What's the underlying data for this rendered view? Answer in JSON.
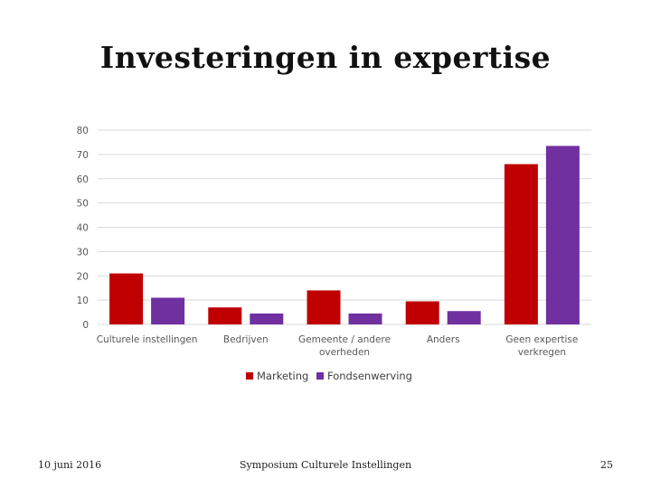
{
  "slide": {
    "title": "Investeringen in expertise",
    "footer_date": "10 juni 2016",
    "footer_title": "Symposium Culturele Instellingen",
    "page_number": "25"
  },
  "chart_data": {
    "type": "bar",
    "categories": [
      [
        "Culturele instellingen"
      ],
      [
        "Bedrijven"
      ],
      [
        "Gemeente / andere",
        "overheden"
      ],
      [
        "Anders"
      ],
      [
        "Geen expertise",
        "verkregen"
      ]
    ],
    "series": [
      {
        "name": "Marketing",
        "color": "#c00000",
        "values": [
          21,
          7,
          14,
          9.5,
          66
        ]
      },
      {
        "name": "Fondsenwerving",
        "color": "#7030a0",
        "values": [
          11,
          4.5,
          4.5,
          5.5,
          73.5
        ]
      }
    ],
    "ylim": [
      0,
      80
    ],
    "yticks": [
      "0",
      "10",
      "20",
      "30",
      "40",
      "50",
      "60",
      "70",
      "80"
    ],
    "grid": true,
    "legend": "bottom",
    "colors": {
      "grid": "#d9d9d9",
      "text": "#595959"
    }
  }
}
